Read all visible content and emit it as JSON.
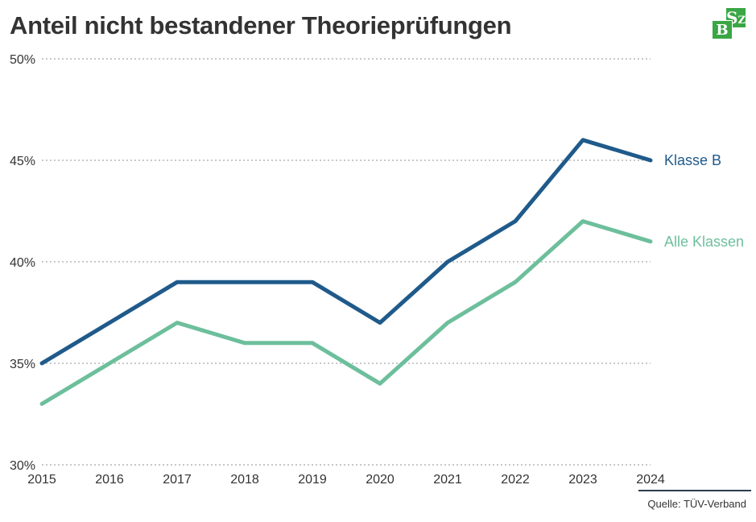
{
  "header": {
    "title": "Anteil nicht bestandener Theorieprüfungen",
    "logo_letters": [
      "S",
      "Z",
      "B",
      "Z"
    ]
  },
  "footer": {
    "source": "Quelle: TÜV-Verband"
  },
  "colors": {
    "klasse_b": "#1f5a8b",
    "alle_klassen": "#6dbf9c",
    "grid": "#c8c8c8",
    "brand_green": "#3aa645"
  },
  "chart_data": {
    "type": "line",
    "title": "Anteil nicht bestandener Theorieprüfungen",
    "x": [
      "2015",
      "2016",
      "2017",
      "2018",
      "2019",
      "2020",
      "2021",
      "2022",
      "2023",
      "2024"
    ],
    "ylim": [
      30,
      50
    ],
    "yticks": [
      30,
      35,
      40,
      45,
      50
    ],
    "ytick_labels": [
      "30%",
      "35%",
      "40%",
      "45%",
      "50%"
    ],
    "grid": "horizontal dotted",
    "legend": "direct labels at line ends (right)",
    "series": [
      {
        "name": "Klasse B",
        "color": "#1f5a8b",
        "values": [
          35,
          37,
          39,
          39,
          39,
          37,
          40,
          42,
          46,
          45
        ]
      },
      {
        "name": "Alle Klassen",
        "color": "#6dbf9c",
        "values": [
          33,
          35,
          37,
          36,
          36,
          34,
          37,
          39,
          42,
          41
        ]
      }
    ]
  }
}
